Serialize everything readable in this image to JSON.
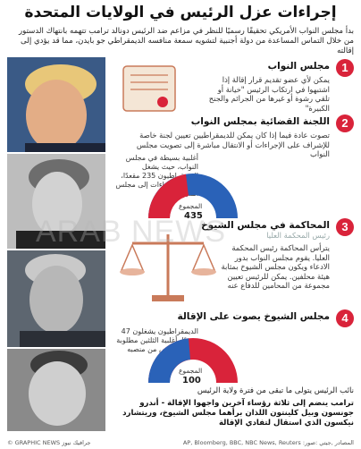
{
  "title": "إجراءات عزل الرئيس في الولايات المتحدة",
  "intro": "بدأ مجلس النواب الأمريكي تحقيقًا رسميًا للنظر في مزاعم ضد الرئيس دونالد ترامب تتهمه بانتهاك الدستور من خلال التماس المساعدة من دولة أجنبية لتشويه سمعة منافسه الديمقراطي جو بايدن، مما قد يؤدي إلى إقالته",
  "steps": [
    {
      "num": "1",
      "title": "مجلس النواب",
      "body": "يمكن لأي عضو تقديم قرار إقالة إذا اشتبهوا في ارتكاب الرئيس \"خيانة أو تلقي رشوة أو غيرها من الجرائم والجنح الكبيرة\""
    },
    {
      "num": "2",
      "title": "اللجنة القضائية بمجلس النواب",
      "body": "تصوت عادة فيما إذا كان يمكن للديمقراطيين تعيين لجنة خاصة للإشراف على الإجراءات أو الانتقال مباشرة إلى تصويت مجلس النواب"
    },
    {
      "num": "3",
      "title": "المحاكمة في مجلس الشيوخ",
      "body": "يترأس المحاكمة رئيس المحكمة العليا. يقوم مجلس النواب بدور الادعاء ويكون مجلس الشيوخ بمثابة هيئة محلفين. يمكن للرئيس تعيين مجموعة من المحامين للدفاع عنه"
    },
    {
      "num": "4",
      "title": "مجلس الشيوخ يصوت على الإقالة",
      "body": ""
    }
  ],
  "step2_chart": {
    "note": "أغلبية بسيطة في مجلس النواب، حيث يشغل الديمقراطيون 235 مقعدًا، ترسل الإجراءات إلى مجلس الشيوخ",
    "total_label": "المجموع",
    "total": "435"
  },
  "step3_faded": "رئيس المحكمة العليا",
  "step4_chart": {
    "note": "الديمقراطيون يشغلون 47 مقعدًا. أغلبية الثلثين مطلوبة لإقالة الرئيس من منصبه",
    "total_label": "المجموع",
    "total": "100"
  },
  "after_note": "نائب الرئيس يتولى ما تبقى من فترة ولاية الرئيس",
  "footer": "ترامب ينضم إلى ثلاثة رؤساء آخرين واجهوا الإقالة - أندرو جونسون وبيل كلينتون اللذان برأهما مجلس الشيوخ، وريتشارد نيكسون الذي استقال لتفادي الإقالة",
  "credit_left": "© GRAPHIC NEWS  جرافيك نيوز",
  "credit_right": "AP, Bloomberg, BBC, NBC News, Reuters  :المصادر  ,جيتي :صور",
  "watermark": "ARAB NEWS",
  "colors": {
    "red": "#d9233a",
    "blue": "#2a62b8",
    "accent": "#d9233a"
  }
}
